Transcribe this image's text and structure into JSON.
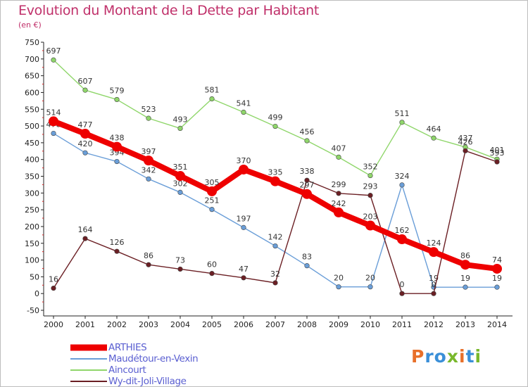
{
  "header": {
    "title": "Evolution du Montant de la Dette par Habitant",
    "subtitle": "(en €)"
  },
  "brand": {
    "text": "Proxiti",
    "colors": [
      "#e8702a",
      "#3a8fd8",
      "#3a8fd8",
      "#79b82c",
      "#e8702a",
      "#3a8fd8",
      "#79b82c"
    ]
  },
  "chart_data": {
    "type": "line",
    "title": "Evolution du Montant de la Dette par Habitant",
    "subtitle": "(en €)",
    "xlabel": "",
    "ylabel": "",
    "x": [
      2000,
      2001,
      2002,
      2003,
      2004,
      2005,
      2006,
      2007,
      2008,
      2009,
      2010,
      2011,
      2012,
      2013,
      2014
    ],
    "ylim": [
      -50,
      750
    ],
    "yticks": [
      -50,
      0,
      50,
      100,
      150,
      200,
      250,
      300,
      350,
      400,
      450,
      500,
      550,
      600,
      650,
      700,
      750
    ],
    "grid": false,
    "legend": "bottom-left",
    "series": [
      {
        "name": "Aincourt",
        "color": "#8fd66a",
        "values": [
          697,
          607,
          579,
          523,
          493,
          581,
          541,
          499,
          456,
          407,
          352,
          511,
          464,
          437,
          401
        ]
      },
      {
        "name": "Maudétour-en-Vexin",
        "color": "#6a9ed8",
        "values": [
          478,
          420,
          394,
          342,
          302,
          251,
          197,
          142,
          83,
          20,
          20,
          324,
          19,
          19,
          19
        ]
      },
      {
        "name": "Wy-dit-Joli-Village",
        "color": "#6b1f24",
        "values": [
          16,
          164,
          126,
          86,
          73,
          60,
          47,
          32,
          338,
          299,
          293,
          0,
          0,
          426,
          393
        ]
      },
      {
        "name": "ARTHIES",
        "color": "#ee0000",
        "values": [
          514,
          477,
          438,
          397,
          351,
          305,
          370,
          335,
          297,
          242,
          203,
          162,
          124,
          86,
          74
        ]
      }
    ],
    "legend_order": [
      "ARTHIES",
      "Maudétour-en-Vexin",
      "Aincourt",
      "Wy-dit-Joli-Village"
    ]
  }
}
